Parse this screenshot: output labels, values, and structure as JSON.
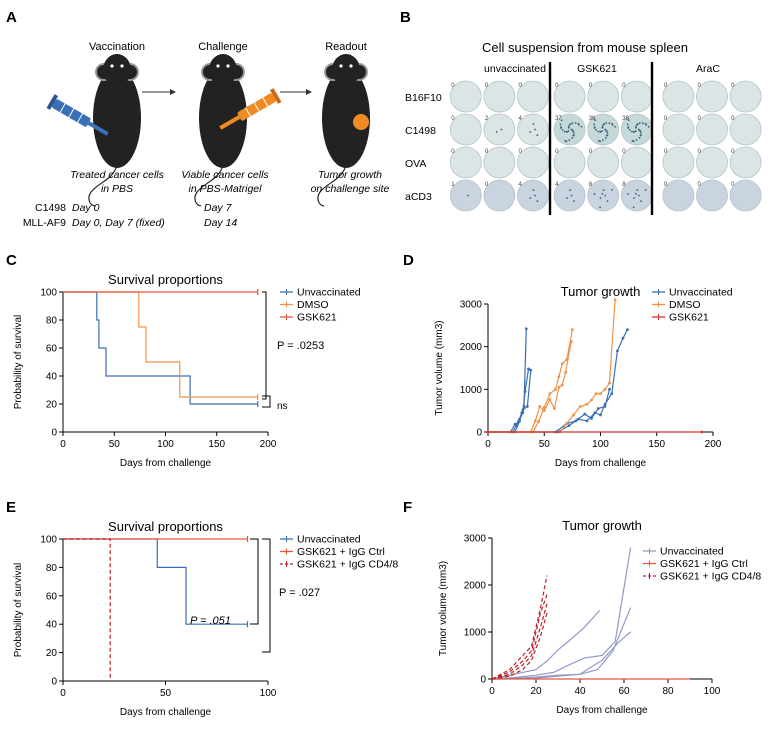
{
  "panels": {
    "A": {
      "letter": "A",
      "steps": [
        {
          "title": "Vaccination",
          "caption1": "Treated cancer cells",
          "caption2": "in PBS"
        },
        {
          "title": "Challenge",
          "caption1": "Viable cancer cells",
          "caption2": "in PBS-Matrigel"
        },
        {
          "title": "Readout",
          "caption1": "Tumor growth",
          "caption2": "on challenge site"
        }
      ],
      "schedule": {
        "models": [
          "C1498",
          "MLL-AF9"
        ],
        "vaccination": [
          "Day 0",
          "Day 0, Day 7 (fixed)"
        ],
        "challenge": [
          "Day 7",
          "Day 14"
        ]
      },
      "colors": {
        "mouse": "#222222",
        "syringe_blue": "#3a6fb5",
        "syringe_orange": "#f08a24",
        "tumor": "#f08a24"
      }
    },
    "B": {
      "letter": "B",
      "title": "Cell suspension from mouse spleen",
      "groups": [
        "unvaccinated",
        "GSK621",
        "AraC"
      ],
      "rows": [
        "B16F10",
        "C1498",
        "OVA",
        "aCD3"
      ],
      "counts": [
        [
          "0",
          "0",
          "0",
          "0",
          "0",
          "0",
          "0",
          "0",
          "0"
        ],
        [
          "0",
          "2",
          "4",
          "37",
          "36",
          "36",
          "0",
          "0",
          "0"
        ],
        [
          "0",
          "0",
          "0",
          "0",
          "0",
          "0",
          "0",
          "0",
          "0"
        ],
        [
          "1",
          "0",
          "4",
          "4",
          "8",
          "8",
          "0",
          "0",
          "0"
        ]
      ]
    },
    "C": {
      "letter": "C",
      "p_main": "P = .0253",
      "ns": "ns"
    },
    "D": {
      "letter": "D"
    },
    "E": {
      "letter": "E",
      "p_inner": "P = .051",
      "p_outer": "P = .027"
    },
    "F": {
      "letter": "F"
    }
  },
  "chart_data": [
    {
      "id": "C",
      "type": "line",
      "subtype": "step-survival",
      "title": "Survival proportions",
      "xlabel": "Days from challenge",
      "ylabel": "Probability of survival",
      "xlim": [
        0,
        200
      ],
      "ylim": [
        0,
        100
      ],
      "xticks": [
        "0",
        "50",
        "100",
        "150",
        "200"
      ],
      "yticks": [
        "0",
        "20",
        "40",
        "60",
        "80",
        "100"
      ],
      "series": [
        {
          "name": "Unvaccinated",
          "color": "#3a6fb5",
          "points": [
            [
              0,
              100
            ],
            [
              33,
              100
            ],
            [
              33,
              80
            ],
            [
              35,
              80
            ],
            [
              35,
              60
            ],
            [
              42,
              60
            ],
            [
              42,
              40
            ],
            [
              124,
              40
            ],
            [
              124,
              20
            ],
            [
              190,
              20
            ]
          ],
          "censor": [
            [
              190,
              20
            ]
          ]
        },
        {
          "name": "DMSO",
          "color": "#f0924a",
          "points": [
            [
              0,
              100
            ],
            [
              74,
              100
            ],
            [
              74,
              75
            ],
            [
              81,
              75
            ],
            [
              81,
              50
            ],
            [
              114,
              50
            ],
            [
              114,
              25
            ],
            [
              190,
              25
            ]
          ],
          "censor": [
            [
              190,
              25
            ]
          ]
        },
        {
          "name": "GSK621",
          "color": "#e8553e",
          "points": [
            [
              0,
              100
            ],
            [
              190,
              100
            ]
          ],
          "censor": [
            [
              190,
              100
            ]
          ]
        }
      ]
    },
    {
      "id": "D",
      "type": "line",
      "title": "Tumor growth",
      "xlabel": "Days from challenge",
      "ylabel": "Tumor volume (mm3)",
      "xlim": [
        0,
        200
      ],
      "ylim": [
        0,
        3000
      ],
      "xticks": [
        "0",
        "50",
        "100",
        "150",
        "200"
      ],
      "yticks": [
        "0",
        "1000",
        "2000",
        "3000"
      ],
      "legend": [
        "Unvaccinated",
        "DMSO",
        "GSK621"
      ],
      "series": [
        {
          "name": "Unvaccinated",
          "color": "#3a6fb5",
          "lines": [
            [
              [
                0,
                0
              ],
              [
                20,
                0
              ],
              [
                24,
                180
              ],
              [
                27,
                240
              ],
              [
                30,
                450
              ],
              [
                32,
                600
              ],
              [
                34,
                2420
              ]
            ],
            [
              [
                0,
                0
              ],
              [
                22,
                0
              ],
              [
                25,
                150
              ],
              [
                28,
                300
              ],
              [
                31,
                450
              ],
              [
                33,
                950
              ],
              [
                36,
                1480
              ]
            ],
            [
              [
                0,
                0
              ],
              [
                24,
                0
              ],
              [
                28,
                250
              ],
              [
                31,
                520
              ],
              [
                35,
                600
              ],
              [
                38,
                1450
              ]
            ],
            [
              [
                0,
                0
              ],
              [
                60,
                0
              ],
              [
                70,
                200
              ],
              [
                78,
                260
              ],
              [
                86,
                420
              ],
              [
                92,
                320
              ],
              [
                98,
                550
              ],
              [
                104,
                600
              ],
              [
                108,
                1000
              ]
            ],
            [
              [
                0,
                0
              ],
              [
                62,
                0
              ],
              [
                72,
                150
              ],
              [
                80,
                300
              ],
              [
                88,
                260
              ],
              [
                95,
                450
              ],
              [
                100,
                400
              ],
              [
                104,
                650
              ],
              [
                110,
                900
              ],
              [
                115,
                1900
              ],
              [
                120,
                2200
              ],
              [
                124,
                2400
              ]
            ]
          ]
        },
        {
          "name": "DMSO",
          "color": "#f0924a",
          "lines": [
            [
              [
                0,
                0
              ],
              [
                38,
                0
              ],
              [
                42,
                260
              ],
              [
                46,
                600
              ],
              [
                50,
                500
              ],
              [
                55,
                760
              ],
              [
                59,
                550
              ],
              [
                63,
                1050
              ],
              [
                66,
                1100
              ],
              [
                69,
                1400
              ],
              [
                74,
                2120
              ]
            ],
            [
              [
                0,
                0
              ],
              [
                40,
                0
              ],
              [
                45,
                250
              ],
              [
                50,
                580
              ],
              [
                55,
                900
              ],
              [
                60,
                1000
              ],
              [
                63,
                1300
              ],
              [
                66,
                1600
              ],
              [
                70,
                1700
              ],
              [
                75,
                2400
              ]
            ],
            [
              [
                0,
                0
              ],
              [
                64,
                0
              ],
              [
                70,
                200
              ],
              [
                76,
                400
              ],
              [
                82,
                600
              ],
              [
                88,
                650
              ],
              [
                92,
                750
              ],
              [
                96,
                900
              ],
              [
                100,
                900
              ],
              [
                104,
                1000
              ],
              [
                108,
                1150
              ],
              [
                113,
                3100
              ]
            ]
          ]
        },
        {
          "name": "GSK621",
          "color": "#d9352a",
          "lines": [
            [
              [
                0,
                0
              ],
              [
                190,
                0
              ]
            ]
          ]
        }
      ]
    },
    {
      "id": "E",
      "type": "line",
      "subtype": "step-survival",
      "title": "Survival proportions",
      "xlabel": "Days from challenge",
      "ylabel": "Probability of survival",
      "xlim": [
        0,
        100
      ],
      "ylim": [
        0,
        100
      ],
      "xticks": [
        "0",
        "50",
        "100"
      ],
      "yticks": [
        "0",
        "20",
        "40",
        "60",
        "80",
        "100"
      ],
      "series": [
        {
          "name": "Unvaccinated",
          "color": "#3a6fb5",
          "points": [
            [
              0,
              100
            ],
            [
              46,
              100
            ],
            [
              46,
              80
            ],
            [
              60,
              80
            ],
            [
              60,
              40
            ],
            [
              90,
              40
            ]
          ],
          "censor": [
            [
              90,
              40
            ]
          ]
        },
        {
          "name": "GSK621 + IgG Ctrl",
          "color": "#e8553e",
          "points": [
            [
              0,
              100
            ],
            [
              90,
              100
            ]
          ],
          "censor": [
            [
              90,
              100
            ]
          ]
        },
        {
          "name": "GSK621 + IgG CD4/8",
          "color": "#c0202a",
          "dashed": true,
          "points": [
            [
              0,
              100
            ],
            [
              23,
              100
            ],
            [
              23,
              0
            ]
          ]
        }
      ]
    },
    {
      "id": "F",
      "type": "line",
      "title": "Tumor growth",
      "xlabel": "Days from challenge",
      "ylabel": "Tumor volume (mm3)",
      "xlim": [
        0,
        100
      ],
      "ylim": [
        0,
        3000
      ],
      "xticks": [
        "0",
        "20",
        "40",
        "60",
        "80",
        "100"
      ],
      "yticks": [
        "0",
        "1000",
        "2000",
        "3000"
      ],
      "legend": [
        "Unvaccinated",
        "GSK621 + IgG Ctrl",
        "GSK621 + IgG CD4/8"
      ],
      "series": [
        {
          "name": "Unvaccinated",
          "color": "#8f9ac4",
          "lines": [
            [
              [
                0,
                0
              ],
              [
                10,
                100
              ],
              [
                20,
                200
              ],
              [
                25,
                380
              ],
              [
                30,
                620
              ],
              [
                36,
                850
              ],
              [
                42,
                1100
              ],
              [
                49,
                1460
              ]
            ],
            [
              [
                0,
                0
              ],
              [
                10,
                30
              ],
              [
                20,
                80
              ],
              [
                28,
                140
              ],
              [
                35,
                300
              ],
              [
                42,
                450
              ],
              [
                50,
                500
              ],
              [
                56,
                800
              ],
              [
                63,
                2800
              ]
            ],
            [
              [
                0,
                0
              ],
              [
                10,
                10
              ],
              [
                20,
                40
              ],
              [
                30,
                80
              ],
              [
                40,
                100
              ],
              [
                48,
                200
              ],
              [
                55,
                600
              ],
              [
                63,
                1520
              ]
            ],
            [
              [
                0,
                0
              ],
              [
                10,
                5
              ],
              [
                20,
                20
              ],
              [
                30,
                60
              ],
              [
                40,
                100
              ],
              [
                50,
                400
              ],
              [
                58,
                800
              ],
              [
                63,
                1000
              ]
            ]
          ]
        },
        {
          "name": "GSK621 + IgG Ctrl",
          "color": "#e8553e",
          "lines": [
            [
              [
                0,
                0
              ],
              [
                90,
                0
              ]
            ]
          ]
        },
        {
          "name": "GSK621 + IgG CD4/8",
          "color": "#c0202a",
          "dashed": true,
          "lines": [
            [
              [
                0,
                0
              ],
              [
                8,
                200
              ],
              [
                14,
                500
              ],
              [
                18,
                700
              ],
              [
                22,
                1500
              ],
              [
                25,
                2200
              ]
            ],
            [
              [
                0,
                0
              ],
              [
                8,
                150
              ],
              [
                14,
                380
              ],
              [
                18,
                600
              ],
              [
                22,
                1400
              ],
              [
                25,
                1800
              ]
            ],
            [
              [
                0,
                0
              ],
              [
                8,
                100
              ],
              [
                14,
                300
              ],
              [
                18,
                500
              ],
              [
                22,
                1100
              ],
              [
                25,
                1600
              ]
            ],
            [
              [
                0,
                0
              ],
              [
                8,
                60
              ],
              [
                14,
                200
              ],
              [
                18,
                400
              ],
              [
                22,
                900
              ],
              [
                25,
                1400
              ]
            ]
          ]
        }
      ]
    }
  ]
}
